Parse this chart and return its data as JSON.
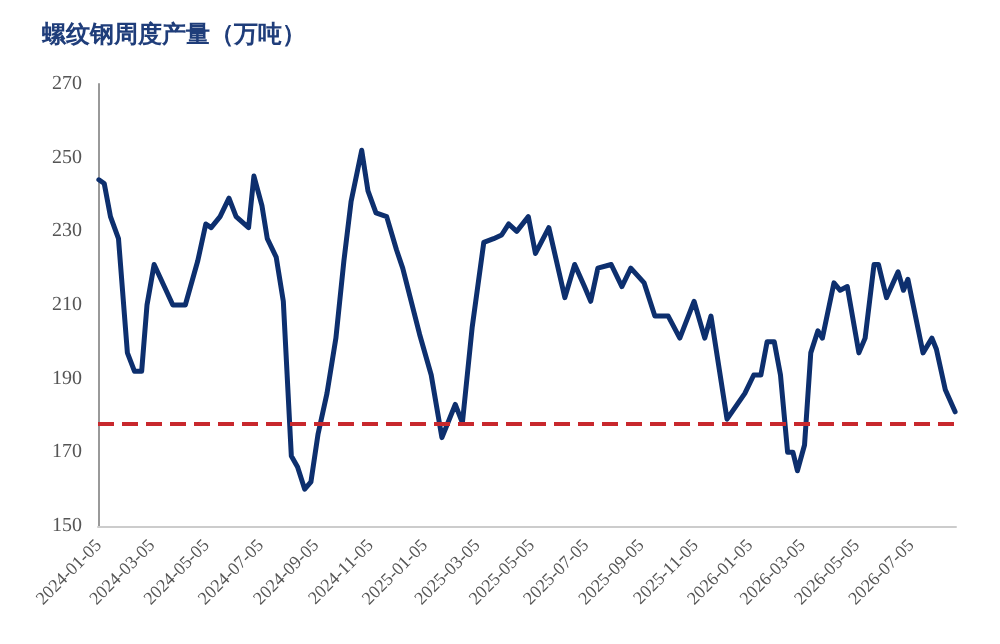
{
  "chart_data": {
    "type": "line",
    "title": "螺纹钢周度产量（万吨）",
    "x": [
      "2024-01-06",
      "2024-01-12",
      "2024-01-19",
      "2024-01-28",
      "2024-02-07",
      "2024-02-15",
      "2024-02-23",
      "2024-02-29",
      "2024-03-08",
      "2024-03-29",
      "2024-04-12",
      "2024-04-26",
      "2024-05-05",
      "2024-05-11",
      "2024-05-21",
      "2024-05-31",
      "2024-06-08",
      "2024-06-22",
      "2024-06-28",
      "2024-07-07",
      "2024-07-13",
      "2024-07-23",
      "2024-07-31",
      "2024-08-09",
      "2024-08-16",
      "2024-08-24",
      "2024-08-31",
      "2024-09-08",
      "2024-09-18",
      "2024-09-28",
      "2024-10-07",
      "2024-10-15",
      "2024-10-27",
      "2024-11-03",
      "2024-11-12",
      "2024-11-24",
      "2024-12-05",
      "2024-12-12",
      "2024-12-31",
      "2025-01-13",
      "2025-01-25",
      "2025-02-09",
      "2025-02-17",
      "2025-02-28",
      "2025-03-13",
      "2025-03-24",
      "2025-04-02",
      "2025-04-10",
      "2025-04-19",
      "2025-05-02",
      "2025-05-10",
      "2025-05-25",
      "2025-06-12",
      "2025-06-23",
      "2025-07-04",
      "2025-07-11",
      "2025-07-19",
      "2025-08-03",
      "2025-08-15",
      "2025-08-25",
      "2025-09-09",
      "2025-09-21",
      "2025-10-06",
      "2025-10-19",
      "2025-11-04",
      "2025-11-16",
      "2025-11-23",
      "2025-12-11",
      "2025-12-31",
      "2026-01-10",
      "2026-01-18",
      "2026-01-25",
      "2026-02-02",
      "2026-02-09",
      "2026-02-17",
      "2026-02-23",
      "2026-02-28",
      "2026-03-08",
      "2026-03-15",
      "2026-03-23",
      "2026-03-28",
      "2026-04-10",
      "2026-04-17",
      "2026-04-25",
      "2026-05-08",
      "2026-05-15",
      "2026-05-25",
      "2026-05-30",
      "2026-06-08",
      "2026-06-21",
      "2026-06-27",
      "2026-07-02",
      "2026-07-19",
      "2026-07-29",
      "2026-08-03",
      "2026-08-13",
      "2026-08-24"
    ],
    "series": [
      {
        "color": "#0d2f6e",
        "values": [
          244,
          243,
          234,
          228,
          197,
          192,
          192,
          210,
          221,
          210,
          210,
          222,
          232,
          231,
          234,
          239,
          234,
          231,
          245,
          237,
          228,
          223,
          211,
          169,
          166,
          160,
          162,
          175,
          186,
          201,
          222,
          238,
          252,
          241,
          235,
          234,
          225,
          220,
          202,
          191,
          174,
          183,
          178,
          204,
          227,
          228,
          229,
          232,
          230,
          234,
          224,
          231,
          212,
          221,
          215,
          211,
          220,
          221,
          215,
          220,
          216,
          207,
          207,
          201,
          211,
          201,
          207,
          179,
          186,
          191,
          191,
          200,
          200,
          191,
          170,
          170,
          165,
          172,
          197,
          203,
          201,
          216,
          214,
          215,
          197,
          201,
          221,
          221,
          212,
          219,
          214,
          217,
          197,
          201,
          198,
          187,
          181
        ]
      }
    ],
    "xlim": [
      "2024-01-05",
      "2026-08-25"
    ],
    "xticks": [
      "2024-01-05",
      "2024-03-05",
      "2024-05-05",
      "2024-07-05",
      "2024-09-05",
      "2024-11-05",
      "2025-01-05",
      "2025-03-05",
      "2025-05-05",
      "2025-07-05",
      "2025-09-05",
      "2025-11-05",
      "2026-01-05",
      "2026-03-05",
      "2026-05-05",
      "2026-07-05"
    ],
    "ylim": [
      150,
      270
    ],
    "yticks": [
      150,
      170,
      190,
      210,
      230,
      250,
      270
    ],
    "ref_lines": [
      {
        "axis": "y",
        "value": 178,
        "color": "#c8282d",
        "line_style": "dashed"
      }
    ],
    "grid": false,
    "marker": "none",
    "line_style": "solid"
  }
}
